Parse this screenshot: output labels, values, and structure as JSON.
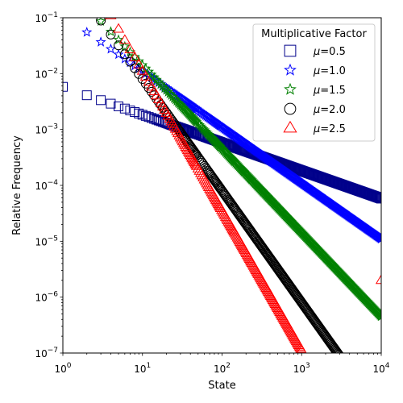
{
  "chart_data": {
    "type": "scatter",
    "title": "",
    "xlabel": "State",
    "ylabel": "Relative Frequency",
    "xscale": "log",
    "yscale": "log",
    "xlim": [
      1,
      10000
    ],
    "ylim": [
      1e-07,
      0.1
    ],
    "grid": false,
    "x_ticks": [
      {
        "value": 1,
        "mantissa": "10",
        "exp": "0"
      },
      {
        "value": 10,
        "mantissa": "10",
        "exp": "1"
      },
      {
        "value": 100,
        "mantissa": "10",
        "exp": "2"
      },
      {
        "value": 1000,
        "mantissa": "10",
        "exp": "3"
      },
      {
        "value": 10000,
        "mantissa": "10",
        "exp": "4"
      }
    ],
    "y_ticks": [
      {
        "value": 1e-07,
        "mantissa": "10",
        "exp": "−7"
      },
      {
        "value": 1e-06,
        "mantissa": "10",
        "exp": "−6"
      },
      {
        "value": 1e-05,
        "mantissa": "10",
        "exp": "−5"
      },
      {
        "value": 0.0001,
        "mantissa": "10",
        "exp": "−4"
      },
      {
        "value": 0.001,
        "mantissa": "10",
        "exp": "−3"
      },
      {
        "value": 0.01,
        "mantissa": "10",
        "exp": "−2"
      },
      {
        "value": 0.1,
        "mantissa": "10",
        "exp": "−1"
      }
    ],
    "legend": {
      "title": "Multiplicative Factor",
      "position": "top-right",
      "entries": [
        {
          "label": "μ=0.5",
          "marker": "square",
          "color": "#00008b"
        },
        {
          "label": "μ=1.0",
          "marker": "star",
          "color": "#0000ff"
        },
        {
          "label": "μ=1.5",
          "marker": "star",
          "color": "#008000"
        },
        {
          "label": "μ=2.0",
          "marker": "circle",
          "color": "#000000"
        },
        {
          "label": "μ=2.5",
          "marker": "triangle",
          "color": "#ff0000"
        }
      ]
    },
    "series": [
      {
        "name": "μ=0.5",
        "marker": "square",
        "color": "#00008b",
        "x_start": 1,
        "x_end": 10000,
        "y_at_x1": 0.0058,
        "slope": -0.5
      },
      {
        "name": "μ=1.0",
        "marker": "star",
        "color": "#0000ff",
        "x_start": 2,
        "x_end": 10000,
        "y_at_x1": 0.11,
        "slope": -1.0
      },
      {
        "name": "μ=1.5",
        "marker": "star",
        "color": "#008000",
        "x_start": 3,
        "x_end": 10000,
        "y_at_x1": 0.45,
        "slope": -1.5
      },
      {
        "name": "μ=2.0",
        "marker": "circle",
        "color": "#000000",
        "x_start": 3,
        "x_end": 4000,
        "y_at_x1": 0.8,
        "slope": -2.0
      },
      {
        "name": "μ=2.5",
        "marker": "triangle",
        "color": "#ff0000",
        "x_start": 4,
        "x_end": 1000,
        "y_at_x1": 3.5,
        "slope": -2.5
      }
    ],
    "outlier_points": [
      {
        "series": "μ=2.5",
        "x": 10000,
        "y": 2e-06
      }
    ]
  }
}
